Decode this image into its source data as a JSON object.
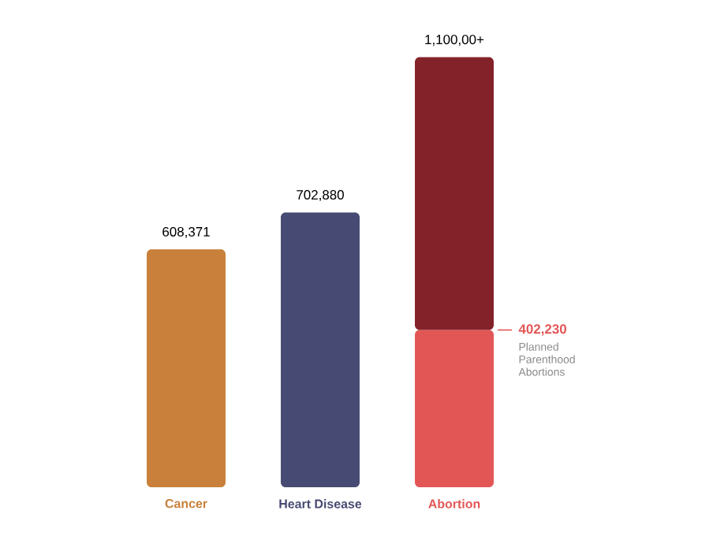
{
  "chart_data": {
    "type": "bar",
    "stacked": true,
    "categories": [
      "Cancer",
      "Heart Disease",
      "Abortion"
    ],
    "series": [
      {
        "colors": [
          "#c8803a",
          "#474a72",
          "#e25656"
        ],
        "values": [
          608371,
          702880,
          402230
        ],
        "value_labels": [
          null,
          null,
          "402,230"
        ]
      },
      {
        "color": "#84222a",
        "values": [
          null,
          null,
          697770
        ]
      }
    ],
    "totals": [
      "608,371",
      "702,880",
      "1,100,00+"
    ],
    "annotations": [
      "Planned Parenthood Abortions"
    ]
  }
}
